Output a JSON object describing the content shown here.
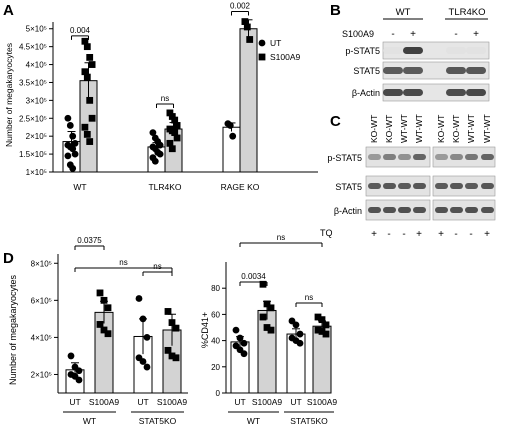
{
  "figure": {
    "panel_labels": [
      "A",
      "B",
      "C",
      "D"
    ]
  },
  "chart_data": [
    {
      "id": "A",
      "type": "bar",
      "ylabel": "Number of megakaryocytes",
      "yticks": [
        "1×10⁵",
        "1.5×10⁵",
        "2×10⁵",
        "2.5×10⁵",
        "3×10⁵",
        "3.5×10⁵",
        "4×10⁵",
        "4.5×10⁵",
        "5×10⁵"
      ],
      "ylim": [
        100000,
        530000
      ],
      "categories": [
        "WT",
        "TLR4KO",
        "RAGE KO"
      ],
      "legend": {
        "placement": "top-right",
        "entries": [
          "UT",
          "S100A9"
        ]
      },
      "series": [
        {
          "name": "UT",
          "marker": "circle",
          "fill": "#ffffff",
          "values": [
            185000,
            170000,
            225000
          ],
          "sem": [
            28000,
            12000,
            12000
          ],
          "points": [
            [
              250000,
              230000,
              200000,
              180000,
              175000,
              170000,
              165000,
              150000,
              145000,
              120000,
              110000
            ],
            [
              210000,
              195000,
              185000,
              175000,
              170000,
              165000,
              155000,
              150000,
              140000,
              130000
            ],
            [
              235000,
              230000,
              200000
            ]
          ]
        },
        {
          "name": "S100A9",
          "marker": "square",
          "fill": "#d3d3d3",
          "values": [
            355000,
            220000,
            500000
          ],
          "sem": [
            50000,
            18000,
            25000
          ],
          "points": [
            [
              465000,
              450000,
              420000,
              400000,
              380000,
              365000,
              300000,
              250000,
              225000,
              205000,
              185000
            ],
            [
              265000,
              255000,
              245000,
              230000,
              220000,
              215000,
              210000,
              195000,
              180000,
              165000
            ],
            [
              520000,
              505000,
              470000
            ]
          ]
        }
      ],
      "annotations": [
        {
          "text": "0.004",
          "group": 0
        },
        {
          "text": "ns",
          "group": 1
        },
        {
          "text": "0.002",
          "group": 2
        }
      ]
    },
    {
      "id": "D-left",
      "type": "bar",
      "ylabel": "Number of megakaryocytes",
      "yticks": [
        "2×10⁵",
        "4×10⁵",
        "6×10⁵",
        "8×10⁵"
      ],
      "ylim": [
        100000,
        850000
      ],
      "categories": [
        "UT",
        "S100A9",
        "UT",
        "S100A9"
      ],
      "groups": [
        "WT",
        "STAT5KO"
      ],
      "fills": [
        "#ffffff",
        "#d3d3d3",
        "#ffffff",
        "#d3d3d3"
      ],
      "markers": [
        "circle",
        "square",
        "circle",
        "square"
      ],
      "values": [
        225000,
        535000,
        405000,
        440000
      ],
      "sem": [
        38000,
        60000,
        95000,
        85000
      ],
      "points": [
        [
          300000,
          240000,
          220000,
          200000,
          190000,
          170000
        ],
        [
          640000,
          600000,
          560000,
          470000,
          440000,
          420000
        ],
        [
          610000,
          500000,
          400000,
          290000,
          270000,
          240000
        ],
        [
          540000,
          480000,
          450000,
          330000,
          300000,
          290000
        ]
      ],
      "annotations": [
        {
          "text": "0.0375",
          "from": 0,
          "to": 1
        },
        {
          "text": "ns",
          "from": 0,
          "to": 3
        },
        {
          "text": "ns",
          "from": 2,
          "to": 3
        }
      ]
    },
    {
      "id": "D-right",
      "type": "bar",
      "ylabel": "%CD41+",
      "yticks": [
        "0",
        "20",
        "40",
        "60",
        "80"
      ],
      "ylim": [
        0,
        100
      ],
      "categories": [
        "UT",
        "S100A9",
        "UT",
        "S100A9"
      ],
      "groups": [
        "WT",
        "STAT5KO"
      ],
      "fills": [
        "#ffffff",
        "#d3d3d3",
        "#ffffff",
        "#d3d3d3"
      ],
      "markers": [
        "circle",
        "square",
        "circle",
        "square"
      ],
      "values": [
        39,
        63,
        45,
        51
      ],
      "sem": [
        4,
        7,
        4,
        4
      ],
      "points": [
        [
          48,
          42,
          38,
          36,
          33,
          30
        ],
        [
          83,
          68,
          65,
          58,
          50,
          48
        ],
        [
          55,
          52,
          45,
          42,
          40,
          38
        ],
        [
          58,
          56,
          52,
          48,
          47,
          45
        ]
      ],
      "annotations": [
        {
          "text": "ns",
          "from": 0,
          "to": 3
        },
        {
          "text": "0.0034",
          "from": 0,
          "to": 1
        },
        {
          "text": "ns",
          "from": 2,
          "to": 3
        }
      ]
    }
  ],
  "blots": {
    "B": {
      "group_labels": [
        "WT",
        "TLR4KO"
      ],
      "treatment_label": "S100A9",
      "treatment_marks": [
        "-",
        "+",
        "-",
        "+"
      ],
      "rows": [
        "p-STAT5",
        "STAT5",
        "β-Actin"
      ]
    },
    "C": {
      "lanes": [
        "KO-WT",
        "KO-WT",
        "WT-WT",
        "WT-WT",
        "KO-WT",
        "KO-WT",
        "WT-WT",
        "WT-WT"
      ],
      "rows": [
        "p-STAT5",
        "STAT5",
        "β-Actin"
      ],
      "treatment_label": "TQ",
      "treatment_marks": [
        "+",
        "-",
        "-",
        "+",
        "+",
        "-",
        "-",
        "+"
      ]
    }
  }
}
